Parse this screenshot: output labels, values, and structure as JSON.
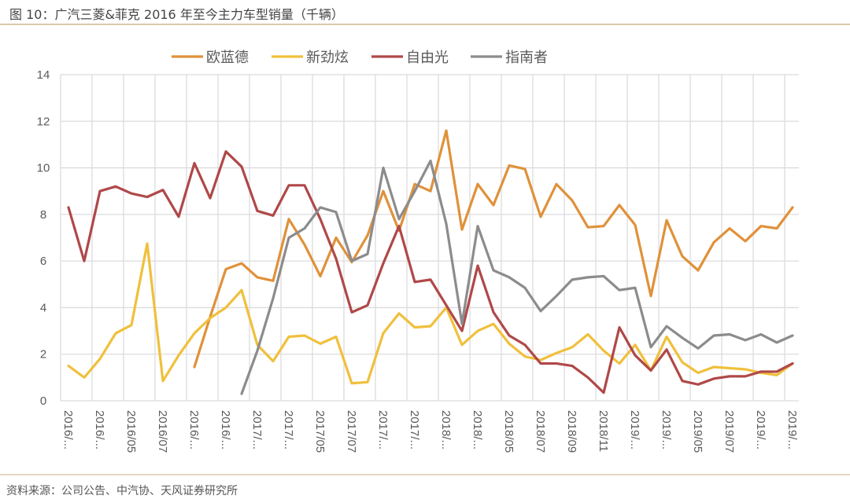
{
  "title": "图 10：广汽三菱&菲克 2016 年至今主力车型销量（千辆）",
  "footer": "资料来源：公司公告、中汽协、天风证券研究所",
  "chart_data": {
    "type": "line",
    "title": "广汽三菱&菲克 2016 年至今主力车型销量（千辆）",
    "xlabel": "",
    "ylabel": "",
    "ylim": [
      0,
      14
    ],
    "yticks": [
      "0",
      "2",
      "4",
      "6",
      "8",
      "10",
      "12",
      "14"
    ],
    "grid": true,
    "legend_position": "top",
    "x_tick_labels": [
      "2016/...",
      "2016/...",
      "2016/05",
      "2016/07",
      "2016/...",
      "2016/...",
      "2017/...",
      "2017/...",
      "2017/05",
      "2017/07",
      "2017/...",
      "2017/...",
      "2018/...",
      "2018/...",
      "2018/05",
      "2018/07",
      "2018/09",
      "2018/11",
      "2019/...",
      "2019/...",
      "2019/05",
      "2019/07",
      "2019/...",
      "2019/..."
    ],
    "x_count": 47,
    "series": [
      {
        "name": "欧蓝德",
        "color": "#e0913a",
        "values": [
          null,
          null,
          null,
          null,
          null,
          null,
          null,
          null,
          1.45,
          3.6,
          5.65,
          5.9,
          5.3,
          5.15,
          7.8,
          6.7,
          5.35,
          7.0,
          5.95,
          7.1,
          9.0,
          7.3,
          9.3,
          9.0,
          11.6,
          7.35,
          9.3,
          8.4,
          10.1,
          9.95,
          7.9,
          9.3,
          8.6,
          7.45,
          7.5,
          8.4,
          7.55,
          4.5,
          7.75,
          6.2,
          5.6,
          6.8,
          7.4,
          6.85,
          7.5,
          7.4,
          8.3
        ]
      },
      {
        "name": "新劲炫",
        "color": "#f0c03c",
        "values": [
          1.5,
          1.0,
          1.8,
          2.9,
          3.25,
          6.75,
          0.85,
          1.95,
          2.9,
          3.55,
          4.0,
          4.75,
          2.4,
          1.7,
          2.75,
          2.8,
          2.45,
          2.75,
          0.75,
          0.8,
          2.9,
          3.75,
          3.15,
          3.2,
          4.0,
          2.4,
          3.0,
          3.3,
          2.45,
          1.9,
          1.75,
          2.05,
          2.3,
          2.85,
          2.15,
          1.6,
          2.4,
          1.3,
          2.75,
          1.65,
          1.2,
          1.45,
          1.4,
          1.35,
          1.2,
          1.1,
          1.6
        ]
      },
      {
        "name": "自由光",
        "color": "#b04848",
        "values": [
          8.3,
          6.0,
          9.0,
          9.2,
          8.9,
          8.75,
          9.05,
          7.9,
          10.2,
          8.7,
          10.7,
          10.05,
          8.15,
          7.95,
          9.25,
          9.25,
          7.8,
          6.1,
          3.8,
          4.1,
          5.9,
          7.5,
          5.1,
          5.2,
          4.1,
          3.0,
          5.8,
          3.8,
          2.8,
          2.4,
          1.6,
          1.6,
          1.5,
          1.0,
          0.35,
          3.15,
          1.95,
          1.3,
          2.2,
          0.85,
          0.7,
          0.95,
          1.05,
          1.05,
          1.25,
          1.25,
          1.6
        ]
      },
      {
        "name": "指南者",
        "color": "#8c8c8c",
        "values": [
          null,
          null,
          null,
          null,
          null,
          null,
          null,
          null,
          null,
          null,
          null,
          0.3,
          2.15,
          4.4,
          7.0,
          7.4,
          8.3,
          8.1,
          6.0,
          6.3,
          10.0,
          7.8,
          9.0,
          10.3,
          7.6,
          3.3,
          7.5,
          5.6,
          5.3,
          4.85,
          3.85,
          4.5,
          5.2,
          5.3,
          5.35,
          4.75,
          4.85,
          2.3,
          3.2,
          2.7,
          2.25,
          2.8,
          2.85,
          2.6,
          2.85,
          2.5,
          2.8
        ]
      }
    ]
  }
}
